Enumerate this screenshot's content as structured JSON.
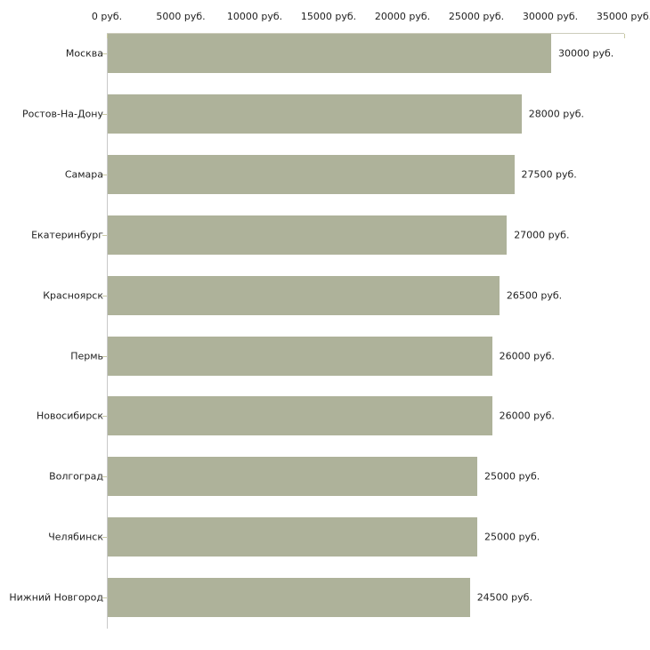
{
  "chart_data": {
    "type": "bar",
    "orientation": "horizontal",
    "title": "",
    "xlabel": "",
    "ylabel": "",
    "unit": "руб.",
    "xlim": [
      0,
      35000
    ],
    "x_tick_step": 5000,
    "x_tick_labels": [
      "0 руб.",
      "5000 руб.",
      "10000 руб.",
      "15000 руб.",
      "20000 руб.",
      "25000 руб.",
      "30000 руб.",
      "35000 руб."
    ],
    "categories": [
      "Москва",
      "Ростов-На-Дону",
      "Самара",
      "Екатеринбург",
      "Красноярск",
      "Пермь",
      "Новосибирск",
      "Волгоград",
      "Челябинск",
      "Нижний Новгород"
    ],
    "values": [
      30000,
      28000,
      27500,
      27000,
      26500,
      26000,
      26000,
      25000,
      25000,
      24500
    ],
    "value_labels": [
      "30000 руб.",
      "28000 руб.",
      "27500 руб.",
      "27000 руб.",
      "26500 руб.",
      "26000 руб.",
      "26000 руб.",
      "25000 руб.",
      "25000 руб.",
      "24500 руб."
    ],
    "legend": null,
    "grid": false,
    "colors": {
      "bar_fill": "#aeb29a",
      "axis_top_line": "#ccccbb",
      "axis_left_line": "#c9c9c9",
      "tick_mark": "#c9c9a4",
      "text": "#1f1f1f",
      "background": "#ffffff"
    }
  }
}
